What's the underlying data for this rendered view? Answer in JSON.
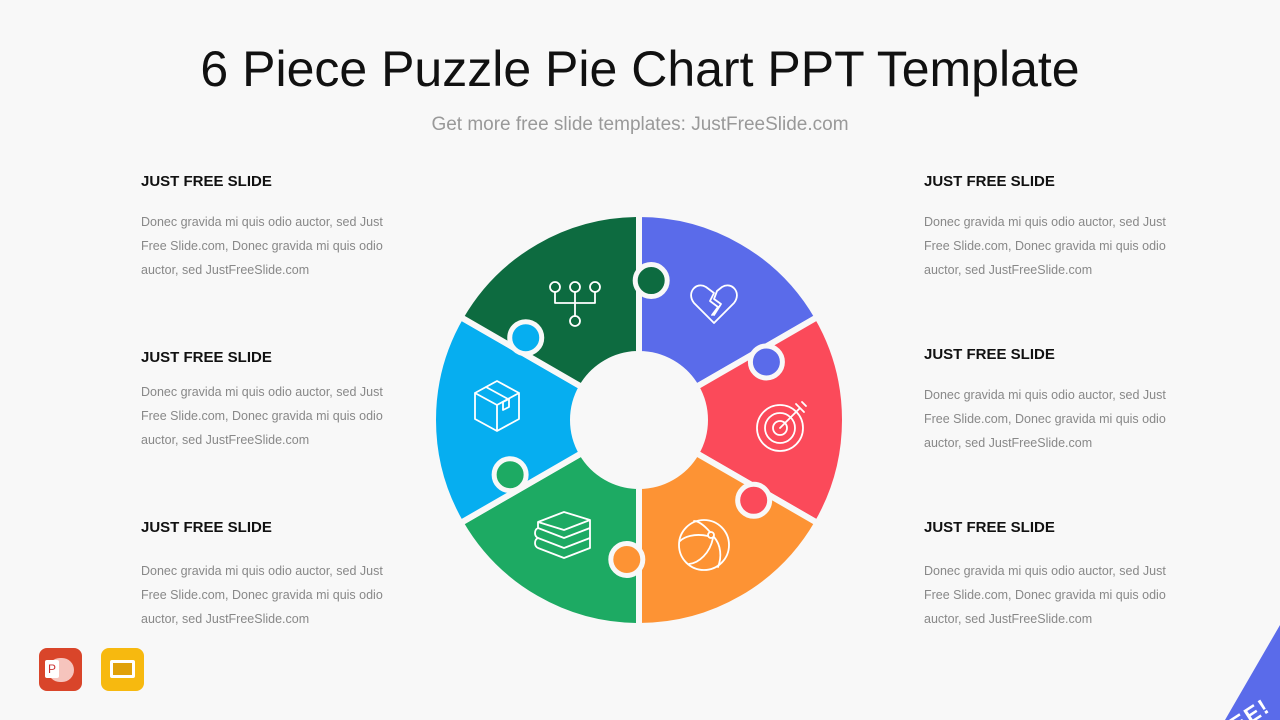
{
  "title": "6 Piece Puzzle Pie Chart PPT Template",
  "subtitle": "Get more free slide templates: JustFreeSlide.com",
  "blocks": {
    "left": [
      {
        "heading": "JUST FREE SLIDE",
        "body": "Donec gravida  mi quis odio auctor,  sed Just Free Slide.com,  Donec gravida  mi quis odio auctor,  sed JustFreeSlide.com"
      },
      {
        "heading": "JUST FREE SLIDE",
        "body": "Donec gravida  mi quis odio auctor,  sed Just Free Slide.com,  Donec gravida  mi quis odio auctor,  sed JustFreeSlide.com"
      },
      {
        "heading": "JUST FREE SLIDE",
        "body": "Donec gravida  mi quis odio auctor,  sed Just Free Slide.com,  Donec gravida  mi quis odio auctor,  sed JustFreeSlide.com"
      }
    ],
    "right": [
      {
        "heading": "JUST FREE SLIDE",
        "body": "Donec gravida  mi quis odio auctor,  sed Just Free Slide.com,  Donec gravida  mi quis odio auctor,  sed JustFreeSlide.com"
      },
      {
        "heading": "JUST FREE SLIDE",
        "body": "Donec gravida  mi quis odio auctor,  sed Just Free Slide.com,  Donec gravida  mi quis odio auctor,  sed JustFreeSlide.com"
      },
      {
        "heading": "JUST FREE SLIDE",
        "body": "Donec gravida  mi quis odio auctor,  sed Just Free Slide.com,  Donec gravida  mi quis odio auctor,  sed JustFreeSlide.com"
      }
    ]
  },
  "puzzle": {
    "pieces": [
      {
        "color": "#5a6bea",
        "icon": "broken-heart-icon"
      },
      {
        "color": "#fb4a5a",
        "icon": "target-icon"
      },
      {
        "color": "#fd9334",
        "icon": "beach-ball-icon"
      },
      {
        "color": "#1daa63",
        "icon": "books-icon"
      },
      {
        "color": "#06aef0",
        "icon": "package-icon"
      },
      {
        "color": "#0d6b40",
        "icon": "hierarchy-icon"
      }
    ]
  },
  "badges": {
    "powerpoint": "P",
    "ribbon": "FREE!"
  }
}
